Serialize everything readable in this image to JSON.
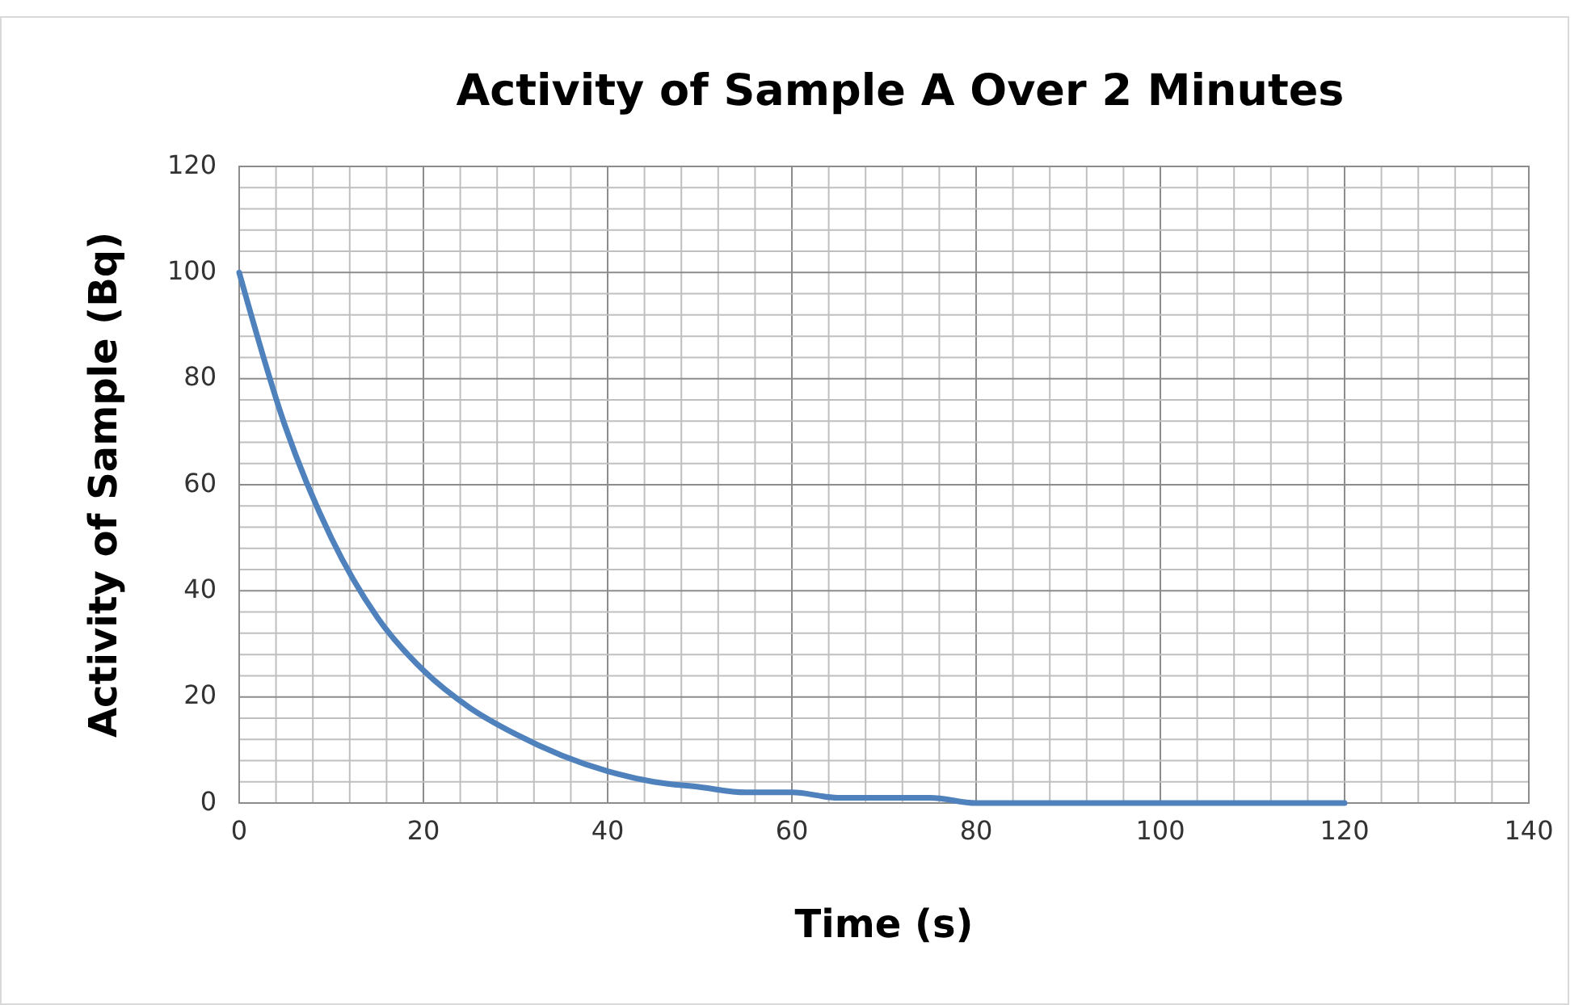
{
  "chart_data": {
    "type": "line",
    "title": "Activity of Sample A Over 2 Minutes",
    "xlabel": "Time (s)",
    "ylabel": "Activity of Sample (Bq)",
    "x": [
      0,
      5,
      10,
      15,
      20,
      25,
      30,
      35,
      40,
      45,
      50,
      55,
      60,
      65,
      70,
      75,
      80,
      85,
      90,
      95,
      100,
      105,
      110,
      115,
      120
    ],
    "series": [
      {
        "color": "#4f81bd",
        "values": [
          100,
          71,
          50,
          35,
          25,
          18,
          13,
          9,
          6,
          4,
          3,
          2,
          2,
          1,
          1,
          1,
          0,
          0,
          0,
          0,
          0,
          0,
          0,
          0,
          0
        ]
      }
    ],
    "xlim": [
      0,
      140
    ],
    "xticks": [
      0,
      {
        "value": 4,
        "label": null
      },
      {
        "value": 8,
        "label": null
      },
      {
        "value": 12,
        "label": null
      },
      {
        "value": 16,
        "label": null
      },
      20,
      {
        "value": 24,
        "label": null
      },
      {
        "value": 28,
        "label": null
      },
      {
        "value": 32,
        "label": null
      },
      {
        "value": 36,
        "label": null
      },
      40,
      {
        "value": 44,
        "label": null
      },
      {
        "value": 48,
        "label": null
      },
      {
        "value": 52,
        "label": null
      },
      {
        "value": 56,
        "label": null
      },
      60,
      {
        "value": 64,
        "label": null
      },
      {
        "value": 68,
        "label": null
      },
      {
        "value": 72,
        "label": null
      },
      {
        "value": 76,
        "label": null
      },
      80,
      {
        "value": 84,
        "label": null
      },
      {
        "value": 88,
        "label": null
      },
      {
        "value": 92,
        "label": null
      },
      {
        "value": 96,
        "label": null
      },
      100,
      {
        "value": 104,
        "label": null
      },
      {
        "value": 108,
        "label": null
      },
      {
        "value": 112,
        "label": null
      },
      {
        "value": 116,
        "label": null
      },
      120,
      {
        "value": 124,
        "label": null
      },
      {
        "value": 128,
        "label": null
      },
      {
        "value": 132,
        "label": null
      },
      {
        "value": 136,
        "label": null
      },
      140
    ],
    "ylim": [
      0,
      120
    ],
    "yticks": [
      0,
      {
        "value": 4,
        "label": null
      },
      {
        "value": 8,
        "label": null
      },
      {
        "value": 12,
        "label": null
      },
      {
        "value": 16,
        "label": null
      },
      20,
      {
        "value": 24,
        "label": null
      },
      {
        "value": 28,
        "label": null
      },
      {
        "value": 32,
        "label": null
      },
      {
        "value": 36,
        "label": null
      },
      40,
      {
        "value": 44,
        "label": null
      },
      {
        "value": 48,
        "label": null
      },
      {
        "value": 52,
        "label": null
      },
      {
        "value": 56,
        "label": null
      },
      60,
      {
        "value": 64,
        "label": null
      },
      {
        "value": 68,
        "label": null
      },
      {
        "value": 72,
        "label": null
      },
      {
        "value": 76,
        "label": null
      },
      80,
      {
        "value": 84,
        "label": null
      },
      {
        "value": 88,
        "label": null
      },
      {
        "value": 92,
        "label": null
      },
      {
        "value": 96,
        "label": null
      },
      100,
      {
        "value": 104,
        "label": null
      },
      {
        "value": 108,
        "label": null
      },
      {
        "value": 112,
        "label": null
      },
      {
        "value": 116,
        "label": null
      },
      120
    ],
    "grid": true,
    "marker": "none",
    "line_style": "solid"
  }
}
